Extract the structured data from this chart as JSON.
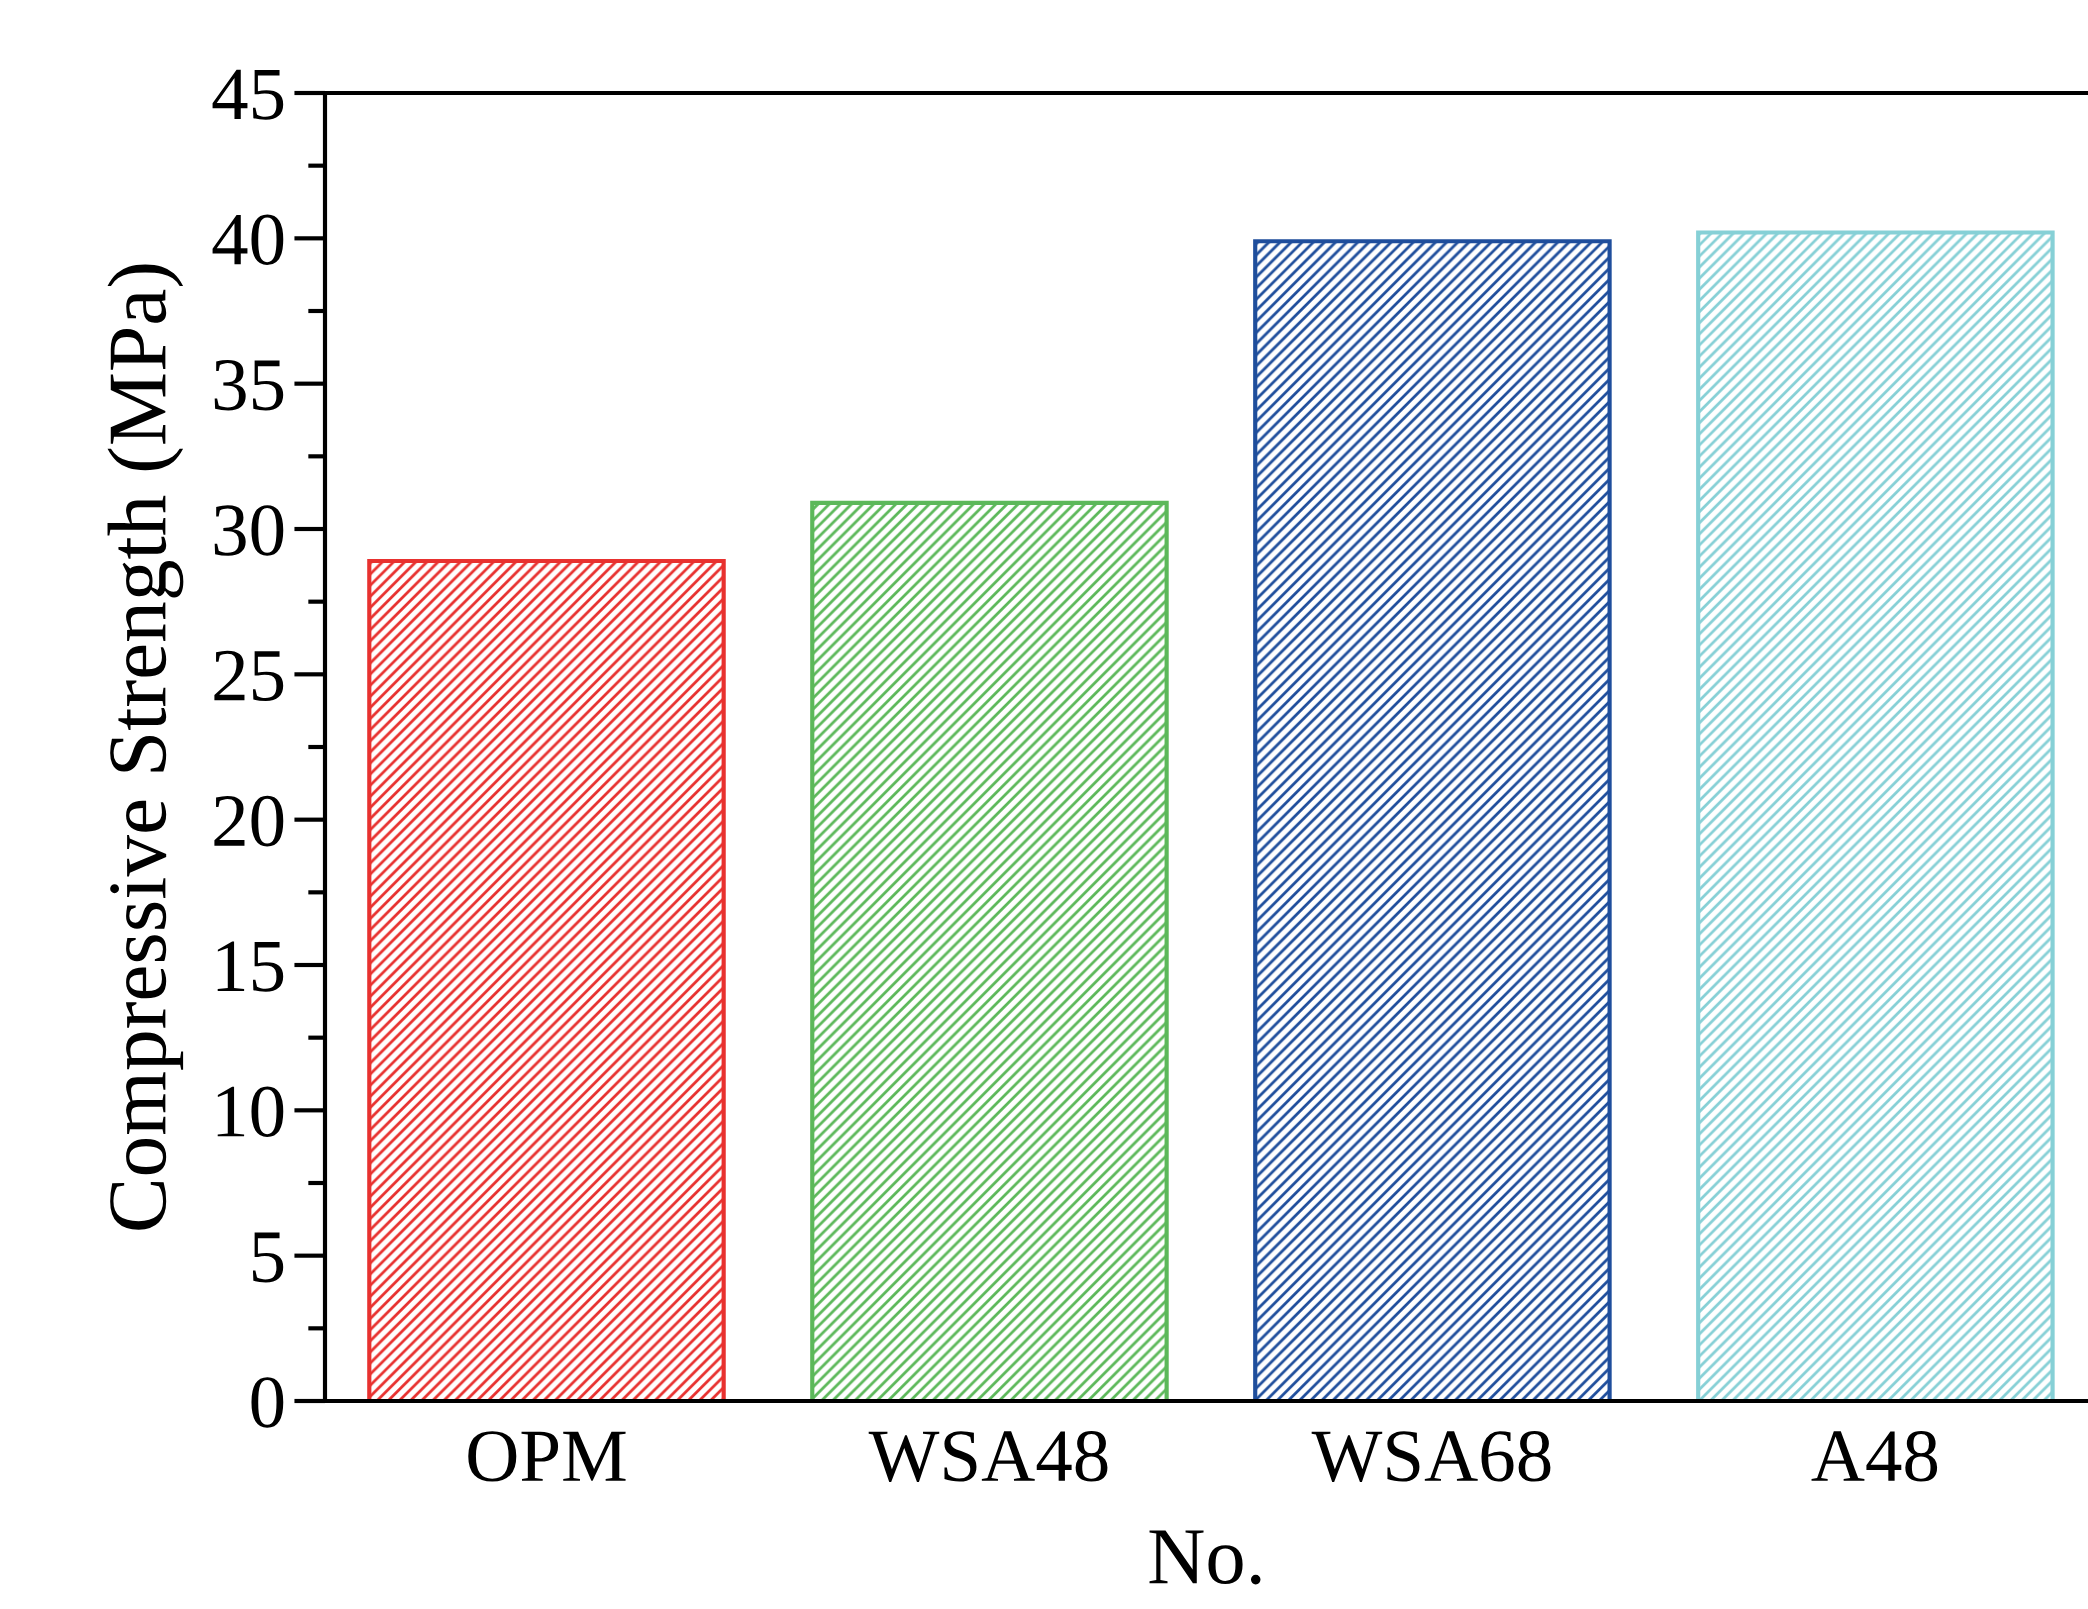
{
  "chart_data": {
    "type": "bar",
    "xlabel": "No.",
    "ylabel": "Compressive Strength (MPa)",
    "categories": [
      "OPM",
      "WSA48",
      "WSA68",
      "A48"
    ],
    "values": [
      28.9,
      30.9,
      39.9,
      40.2
    ],
    "colors": [
      "#e8312f",
      "#5cb85a",
      "#1f4e9c",
      "#86d0d6"
    ],
    "ylim": [
      0,
      45
    ],
    "yticks": [
      0,
      5,
      10,
      15,
      20,
      25,
      30,
      35,
      40,
      45
    ],
    "grid": false,
    "legend": false
  }
}
